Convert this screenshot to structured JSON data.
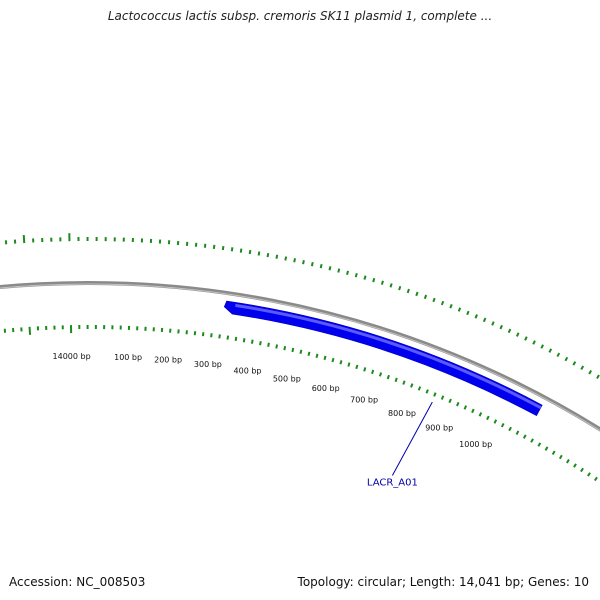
{
  "title": "Lactococcus lactis subsp. cremoris SK11 plasmid 1, complete ...",
  "footer": {
    "accession": "Accession: NC_008503",
    "summary": "Topology: circular; Length: 14,041 bp; Genes: 10"
  },
  "colors": {
    "backbone": "#8a8a8a",
    "gene_fill": "#0000ee",
    "gene_highlight": "#5a5aff",
    "tick": "#1c8a1c",
    "gene_label": "#0000aa"
  },
  "plasmid": {
    "length_bp": 14041,
    "topology": "circular"
  },
  "ruler": {
    "labels": [
      {
        "bp": 14000,
        "text": "14000 bp"
      },
      {
        "bp": 100,
        "text": "100 bp"
      },
      {
        "bp": 200,
        "text": "200 bp"
      },
      {
        "bp": 300,
        "text": "300 bp"
      },
      {
        "bp": 400,
        "text": "400 bp"
      },
      {
        "bp": 500,
        "text": "500 bp"
      },
      {
        "bp": 600,
        "text": "600 bp"
      },
      {
        "bp": 700,
        "text": "700 bp"
      },
      {
        "bp": 800,
        "text": "800 bp"
      },
      {
        "bp": 900,
        "text": "900 bp"
      },
      {
        "bp": 1000,
        "text": "1000 bp"
      }
    ]
  },
  "genes": [
    {
      "name": "LACR_A01",
      "start_bp": 320,
      "end_bp": 1100,
      "strand": "+"
    }
  ]
}
